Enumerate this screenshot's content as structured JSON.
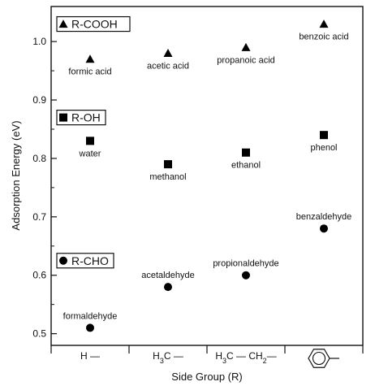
{
  "chart_data": {
    "type": "scatter",
    "xlabel": "Side Group (R)",
    "ylabel": "Adsorption Energy (eV)",
    "ylim": [
      0.48,
      1.06
    ],
    "yticks": [
      "0.5",
      "0.6",
      "0.7",
      "0.8",
      "0.9",
      "1.0"
    ],
    "categories": [
      "H —",
      "H3C —",
      "H3C — CH2—",
      "benzene ring"
    ],
    "category_labels": [
      {
        "main": "H —"
      },
      {
        "main": "H",
        "sub": "3",
        "rest": "C —"
      },
      {
        "main": "H",
        "sub": "3",
        "rest": "C — CH",
        "sub2": "2",
        "rest2": "—"
      }
    ],
    "series": [
      {
        "name": "R-COOH",
        "marker": "triangle",
        "values": [
          0.97,
          0.98,
          0.99,
          1.03
        ],
        "labels": [
          "formic acid",
          "acetic acid",
          "propanoic acid",
          "benzoic acid"
        ]
      },
      {
        "name": "R-OH",
        "marker": "square",
        "values": [
          0.83,
          0.79,
          0.81,
          0.84
        ],
        "labels": [
          "water",
          "methanol",
          "ethanol",
          "phenol"
        ]
      },
      {
        "name": "R-CHO",
        "marker": "circle",
        "values": [
          0.51,
          0.58,
          0.6,
          0.68
        ],
        "labels": [
          "formaldehyde",
          "acetaldehyde",
          "propionaldehyde",
          "benzaldehyde"
        ]
      }
    ],
    "legend_placement": "left, beside each series",
    "grid": false
  }
}
